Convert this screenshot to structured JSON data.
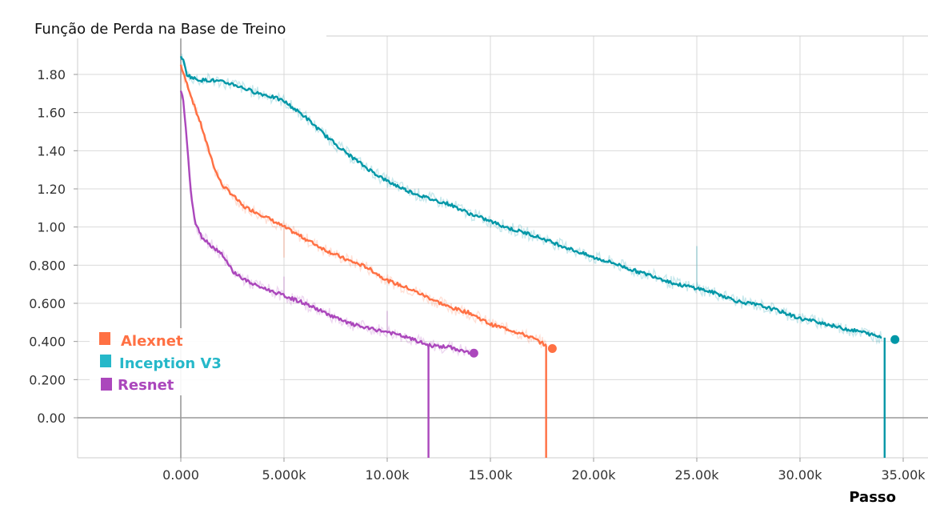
{
  "chart_data": {
    "type": "line",
    "title": "Função de Perda na Base de Treino",
    "xlabel": "Passo",
    "ylabel": "",
    "xlim": [
      -5000,
      36000
    ],
    "ylim": [
      -0.2,
      1.98
    ],
    "x_ticks": [
      0,
      5000,
      10000,
      15000,
      20000,
      25000,
      30000,
      35000
    ],
    "x_tick_labels": [
      "0.000",
      "5.000k",
      "10.00k",
      "15.00k",
      "20.00k",
      "25.00k",
      "30.00k",
      "35.00k"
    ],
    "y_ticks": [
      0,
      0.2,
      0.4,
      0.6,
      0.8,
      1.0,
      1.2,
      1.4,
      1.6,
      1.8
    ],
    "y_tick_labels": [
      "0.00",
      "0.200",
      "0.400",
      "0.600",
      "0.800",
      "1.00",
      "1.20",
      "1.40",
      "1.60",
      "1.80"
    ],
    "grid": true,
    "legend_position": "bottom-left",
    "series": [
      {
        "name": "Alexnet",
        "color": "#ff7043",
        "drop_x": 17700,
        "end_x": 18000,
        "end_y": 0.363,
        "x": [
          0,
          200,
          400,
          700,
          1000,
          1300,
          1700,
          2000,
          2500,
          3000,
          4000,
          5000,
          6000,
          7000,
          8000,
          9000,
          10000,
          11000,
          12000,
          13000,
          14000,
          15000,
          16000,
          17000,
          17700
        ],
        "y": [
          1.85,
          1.78,
          1.72,
          1.62,
          1.53,
          1.42,
          1.29,
          1.22,
          1.17,
          1.11,
          1.06,
          1.0,
          0.94,
          0.88,
          0.83,
          0.79,
          0.72,
          0.68,
          0.63,
          0.58,
          0.55,
          0.49,
          0.46,
          0.42,
          0.38
        ],
        "spikes": [
          [
            13100,
            0.6
          ],
          [
            5000,
            0.84
          ]
        ]
      },
      {
        "name": "Inception V3",
        "color": "#0097a7",
        "drop_x": 34100,
        "end_x": 34600,
        "end_y": 0.41,
        "x": [
          0,
          100,
          300,
          600,
          1000,
          1500,
          2500,
          3500,
          4500,
          5000,
          6000,
          7000,
          8000,
          9000,
          10000,
          11000,
          12000,
          13000,
          14000,
          15000,
          16000,
          17000,
          18000,
          19000,
          20000,
          21000,
          22000,
          23000,
          24000,
          25000,
          26000,
          27000,
          28000,
          29000,
          30000,
          31000,
          32000,
          33000,
          34000
        ],
        "y": [
          1.9,
          1.88,
          1.8,
          1.78,
          1.77,
          1.77,
          1.75,
          1.71,
          1.68,
          1.66,
          1.58,
          1.48,
          1.39,
          1.31,
          1.24,
          1.19,
          1.15,
          1.12,
          1.07,
          1.03,
          0.99,
          0.96,
          0.92,
          0.88,
          0.84,
          0.81,
          0.77,
          0.74,
          0.7,
          0.68,
          0.65,
          0.61,
          0.59,
          0.56,
          0.52,
          0.5,
          0.47,
          0.45,
          0.42
        ],
        "spikes": [
          [
            25000,
            0.9
          ]
        ]
      },
      {
        "name": "Resnet",
        "color": "#ab47bc",
        "drop_x": 12000,
        "end_x": 14200,
        "end_y": 0.339,
        "x": [
          0,
          100,
          200,
          300,
          400,
          500,
          700,
          1000,
          1500,
          2000,
          2500,
          3000,
          3500,
          4000,
          5000,
          6000,
          7000,
          8000,
          9000,
          10000,
          11000,
          12000,
          13000,
          14000
        ],
        "y": [
          1.72,
          1.68,
          1.58,
          1.45,
          1.3,
          1.17,
          1.02,
          0.95,
          0.9,
          0.86,
          0.77,
          0.73,
          0.7,
          0.68,
          0.64,
          0.6,
          0.55,
          0.5,
          0.47,
          0.45,
          0.42,
          0.38,
          0.37,
          0.34
        ],
        "spikes": [
          [
            5000,
            0.74
          ],
          [
            10000,
            0.56
          ]
        ]
      }
    ]
  }
}
